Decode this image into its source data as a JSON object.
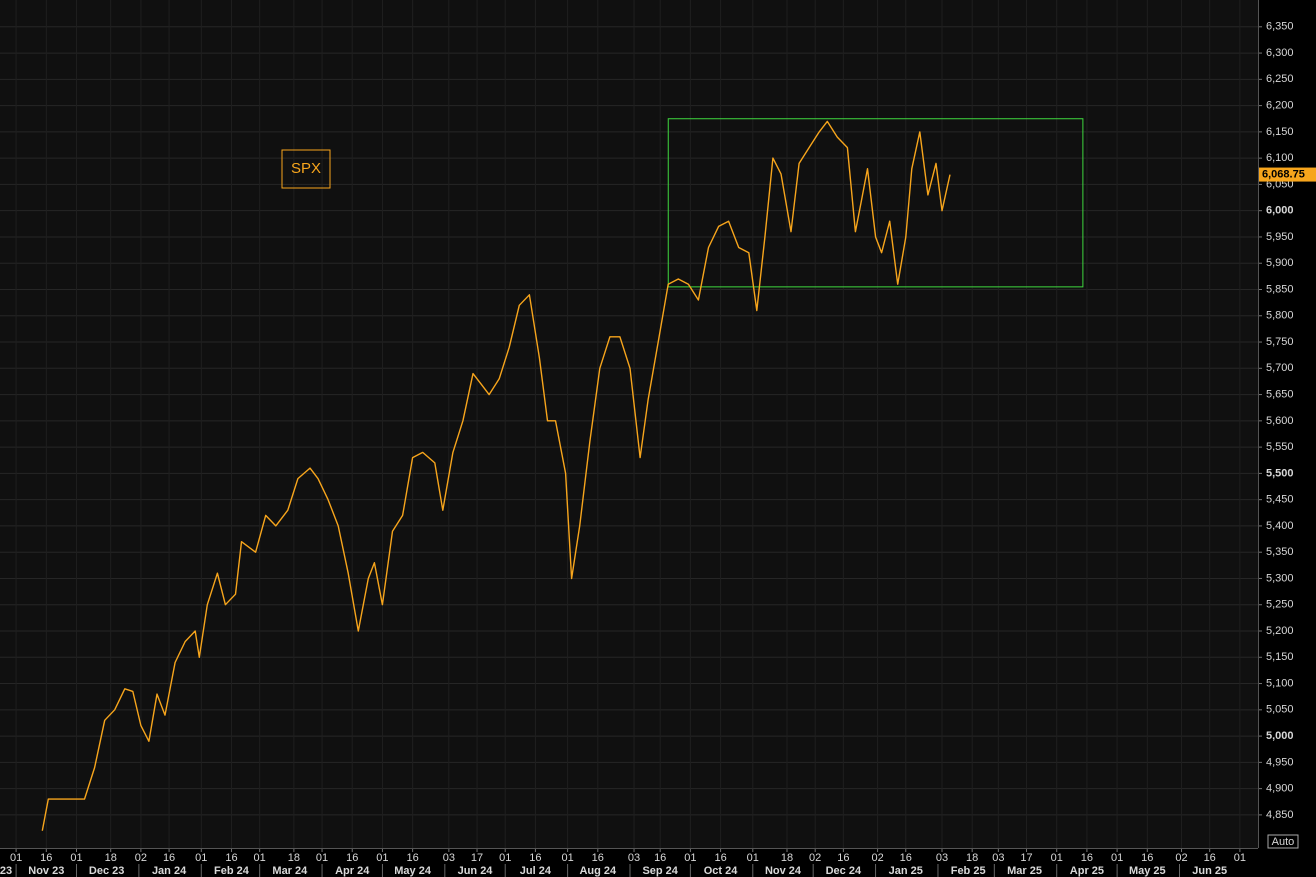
{
  "chart_data": {
    "type": "line",
    "series": [
      {
        "name": "SPX",
        "color": "#f7a51c",
        "values": [
          4820,
          4880,
          4880,
          4880,
          4880,
          4940,
          5030,
          5050,
          5090,
          5085,
          5020,
          4990,
          5080,
          5040,
          5140,
          5180,
          5200,
          5150,
          5250,
          5310,
          5250,
          5270,
          5370,
          5350,
          5420,
          5400,
          5430,
          5490,
          5510,
          5490,
          5450,
          5400,
          5310,
          5200,
          5300,
          5330,
          5250,
          5390,
          5420,
          5530,
          5540,
          5520,
          5430,
          5540,
          5600,
          5690,
          5670,
          5650,
          5680,
          5740,
          5820,
          5840,
          5720,
          5600,
          5600,
          5500,
          5300,
          5400,
          5560,
          5700,
          5760,
          5760,
          5700,
          5530,
          5640,
          5750,
          5860,
          5870,
          5860,
          5830,
          5930,
          5970,
          5980,
          5930,
          5920,
          5810,
          5950,
          6100,
          6070,
          5960,
          6090,
          6120,
          6150,
          6170,
          6140,
          6120,
          5960,
          6020,
          6080,
          5950,
          5920,
          5980,
          5860,
          5950,
          6080,
          6150,
          6030,
          6090,
          6000,
          6068.75
        ]
      }
    ],
    "x": [
      "2023-11-14",
      "2023-11-17",
      "2023-11-23",
      "2023-11-30",
      "2023-12-05",
      "2023-12-10",
      "2023-12-15",
      "2023-12-20",
      "2023-12-25",
      "2023-12-29",
      "2024-01-02",
      "2024-01-06",
      "2024-01-10",
      "2024-01-14",
      "2024-01-19",
      "2024-01-24",
      "2024-01-29",
      "2024-01-31",
      "2024-02-04",
      "2024-02-09",
      "2024-02-13",
      "2024-02-18",
      "2024-02-21",
      "2024-02-28",
      "2024-03-04",
      "2024-03-09",
      "2024-03-15",
      "2024-03-20",
      "2024-03-26",
      "2024-03-30",
      "2024-04-04",
      "2024-04-09",
      "2024-04-14",
      "2024-04-19",
      "2024-04-24",
      "2024-04-27",
      "2024-05-01",
      "2024-05-06",
      "2024-05-11",
      "2024-05-16",
      "2024-05-21",
      "2024-05-27",
      "2024-05-31",
      "2024-06-05",
      "2024-06-10",
      "2024-06-15",
      "2024-06-19",
      "2024-06-23",
      "2024-06-28",
      "2024-07-03",
      "2024-07-08",
      "2024-07-13",
      "2024-07-18",
      "2024-07-22",
      "2024-07-26",
      "2024-07-31",
      "2024-08-03",
      "2024-08-07",
      "2024-08-12",
      "2024-08-17",
      "2024-08-22",
      "2024-08-27",
      "2024-09-01",
      "2024-09-06",
      "2024-09-10",
      "2024-09-15",
      "2024-09-20",
      "2024-09-25",
      "2024-09-30",
      "2024-10-05",
      "2024-10-10",
      "2024-10-15",
      "2024-10-20",
      "2024-10-25",
      "2024-10-30",
      "2024-11-03",
      "2024-11-07",
      "2024-11-11",
      "2024-11-15",
      "2024-11-20",
      "2024-11-24",
      "2024-11-29",
      "2024-12-04",
      "2024-12-08",
      "2024-12-13",
      "2024-12-18",
      "2024-12-22",
      "2024-12-25",
      "2024-12-28",
      "2025-01-01",
      "2025-01-04",
      "2025-01-08",
      "2025-01-12",
      "2025-01-16",
      "2025-01-19",
      "2025-01-23",
      "2025-01-27",
      "2025-01-31",
      "2025-02-03",
      "2025-02-07"
    ],
    "xlim": [
      "2023-10-24",
      "2025-07-10"
    ],
    "xticks": [
      {
        "value": "2023-11-01",
        "label": "01"
      },
      {
        "value": "2023-11-16",
        "label": "16"
      },
      {
        "value": "2023-12-01",
        "label": "01"
      },
      {
        "value": "2023-12-18",
        "label": "18"
      },
      {
        "value": "2024-01-02",
        "label": "02"
      },
      {
        "value": "2024-01-16",
        "label": "16"
      },
      {
        "value": "2024-02-01",
        "label": "01"
      },
      {
        "value": "2024-02-16",
        "label": "16"
      },
      {
        "value": "2024-03-01",
        "label": "01"
      },
      {
        "value": "2024-03-18",
        "label": "18"
      },
      {
        "value": "2024-04-01",
        "label": "01"
      },
      {
        "value": "2024-04-16",
        "label": "16"
      },
      {
        "value": "2024-05-01",
        "label": "01"
      },
      {
        "value": "2024-05-16",
        "label": "16"
      },
      {
        "value": "2024-06-03",
        "label": "03"
      },
      {
        "value": "2024-06-17",
        "label": "17"
      },
      {
        "value": "2024-07-01",
        "label": "01"
      },
      {
        "value": "2024-07-16",
        "label": "16"
      },
      {
        "value": "2024-08-01",
        "label": "01"
      },
      {
        "value": "2024-08-16",
        "label": "16"
      },
      {
        "value": "2024-09-03",
        "label": "03"
      },
      {
        "value": "2024-09-16",
        "label": "16"
      },
      {
        "value": "2024-10-01",
        "label": "01"
      },
      {
        "value": "2024-10-16",
        "label": "16"
      },
      {
        "value": "2024-11-01",
        "label": "01"
      },
      {
        "value": "2024-11-18",
        "label": "18"
      },
      {
        "value": "2024-12-02",
        "label": "02"
      },
      {
        "value": "2024-12-16",
        "label": "16"
      },
      {
        "value": "2025-01-02",
        "label": "02"
      },
      {
        "value": "2025-01-16",
        "label": "16"
      },
      {
        "value": "2025-02-03",
        "label": "03"
      },
      {
        "value": "2025-02-18",
        "label": "18"
      },
      {
        "value": "2025-03-03",
        "label": "03"
      },
      {
        "value": "2025-03-17",
        "label": "17"
      },
      {
        "value": "2025-04-01",
        "label": "01"
      },
      {
        "value": "2025-04-16",
        "label": "16"
      },
      {
        "value": "2025-05-01",
        "label": "01"
      },
      {
        "value": "2025-05-16",
        "label": "16"
      },
      {
        "value": "2025-06-02",
        "label": "02"
      },
      {
        "value": "2025-06-16",
        "label": "16"
      },
      {
        "value": "2025-07-01",
        "label": "01"
      }
    ],
    "month_labels": [
      {
        "value": "2023-10-01",
        "label": "23"
      },
      {
        "value": "2023-11-01",
        "label": "Nov 23"
      },
      {
        "value": "2023-12-01",
        "label": "Dec 23"
      },
      {
        "value": "2024-01-01",
        "label": "Jan 24"
      },
      {
        "value": "2024-02-01",
        "label": "Feb 24"
      },
      {
        "value": "2024-03-01",
        "label": "Mar 24"
      },
      {
        "value": "2024-04-01",
        "label": "Apr 24"
      },
      {
        "value": "2024-05-01",
        "label": "May 24"
      },
      {
        "value": "2024-06-01",
        "label": "Jun 24"
      },
      {
        "value": "2024-07-01",
        "label": "Jul 24"
      },
      {
        "value": "2024-08-01",
        "label": "Aug 24"
      },
      {
        "value": "2024-09-01",
        "label": "Sep 24"
      },
      {
        "value": "2024-10-01",
        "label": "Oct 24"
      },
      {
        "value": "2024-11-01",
        "label": "Nov 24"
      },
      {
        "value": "2024-12-01",
        "label": "Dec 24"
      },
      {
        "value": "2025-01-01",
        "label": "Jan 25"
      },
      {
        "value": "2025-02-01",
        "label": "Feb 25"
      },
      {
        "value": "2025-03-01",
        "label": "Mar 25"
      },
      {
        "value": "2025-04-01",
        "label": "Apr 25"
      },
      {
        "value": "2025-05-01",
        "label": "May 25"
      },
      {
        "value": "2025-06-01",
        "label": "Jun 25"
      }
    ],
    "ylim": [
      4787,
      6401
    ],
    "yticks": [
      {
        "value": 4850,
        "label": "4,850"
      },
      {
        "value": 4900,
        "label": "4,900"
      },
      {
        "value": 4950,
        "label": "4,950"
      },
      {
        "value": 5000,
        "label": "5,000"
      },
      {
        "value": 5050,
        "label": "5,050"
      },
      {
        "value": 5100,
        "label": "5,100"
      },
      {
        "value": 5150,
        "label": "5,150"
      },
      {
        "value": 5200,
        "label": "5,200"
      },
      {
        "value": 5250,
        "label": "5,250"
      },
      {
        "value": 5300,
        "label": "5,300"
      },
      {
        "value": 5350,
        "label": "5,350"
      },
      {
        "value": 5400,
        "label": "5,400"
      },
      {
        "value": 5450,
        "label": "5,450"
      },
      {
        "value": 5500,
        "label": "5,500"
      },
      {
        "value": 5550,
        "label": "5,550"
      },
      {
        "value": 5600,
        "label": "5,600"
      },
      {
        "value": 5650,
        "label": "5,650"
      },
      {
        "value": 5700,
        "label": "5,700"
      },
      {
        "value": 5750,
        "label": "5,750"
      },
      {
        "value": 5800,
        "label": "5,800"
      },
      {
        "value": 5850,
        "label": "5,850"
      },
      {
        "value": 5900,
        "label": "5,900"
      },
      {
        "value": 5950,
        "label": "5,950"
      },
      {
        "value": 6000,
        "label": "6,000"
      },
      {
        "value": 6050,
        "label": "6,050"
      },
      {
        "value": 6100,
        "label": "6,100"
      },
      {
        "value": 6150,
        "label": "6,150"
      },
      {
        "value": 6200,
        "label": "6,200"
      },
      {
        "value": 6250,
        "label": "6,250"
      },
      {
        "value": 6300,
        "label": "6,300"
      },
      {
        "value": 6350,
        "label": "6,350"
      }
    ],
    "grid": true,
    "last_label": "6,068.75",
    "box": {
      "x": [
        "2024-09-20",
        "2025-04-14"
      ],
      "y": [
        5855,
        6175
      ],
      "color": "#3fd83f"
    },
    "auto_label": "Auto"
  }
}
